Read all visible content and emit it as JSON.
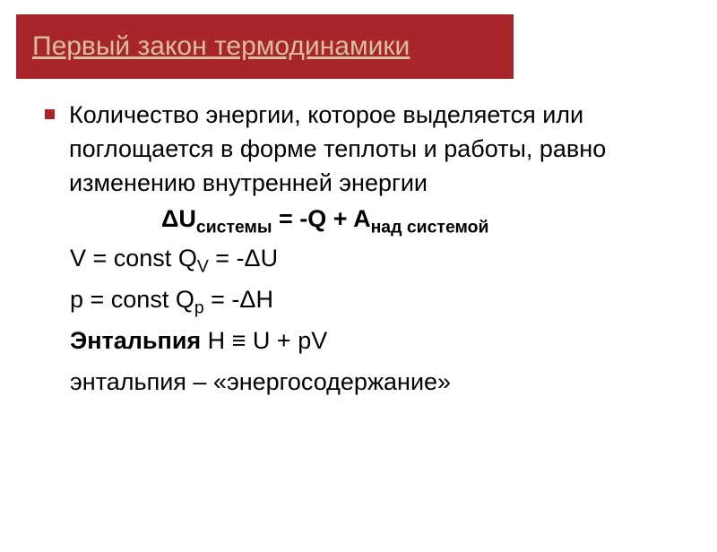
{
  "colors": {
    "title_bg": "#a8252a",
    "title_text": "#d8c09a",
    "bullet": "#a8252a",
    "text": "#000000",
    "background": "#ffffff"
  },
  "typography": {
    "title_fontsize": 30,
    "body_fontsize": 27,
    "font_family": "Arial"
  },
  "title": "Первый закон термодинамики",
  "paragraph": "Количество энергии, которое выделяется или поглощается в форме теплоты и работы, равно изменению внутренней энергии",
  "formula_main": {
    "lhs": "ΔU",
    "lhs_sub": "системы",
    "eq": " = -Q + A",
    "rhs_sub": "над системой"
  },
  "line_v": {
    "prefix": "V = const Q",
    "sub": "V",
    "suffix": " = -ΔU"
  },
  "line_p": {
    "prefix": "p = const Q",
    "sub": "p",
    "suffix": " = -ΔH"
  },
  "line_enthalpy": {
    "label": "Энтальпия",
    "formula": " H ≡ U + pV"
  },
  "line_meaning": "энтальпия – «энергосодержание»"
}
